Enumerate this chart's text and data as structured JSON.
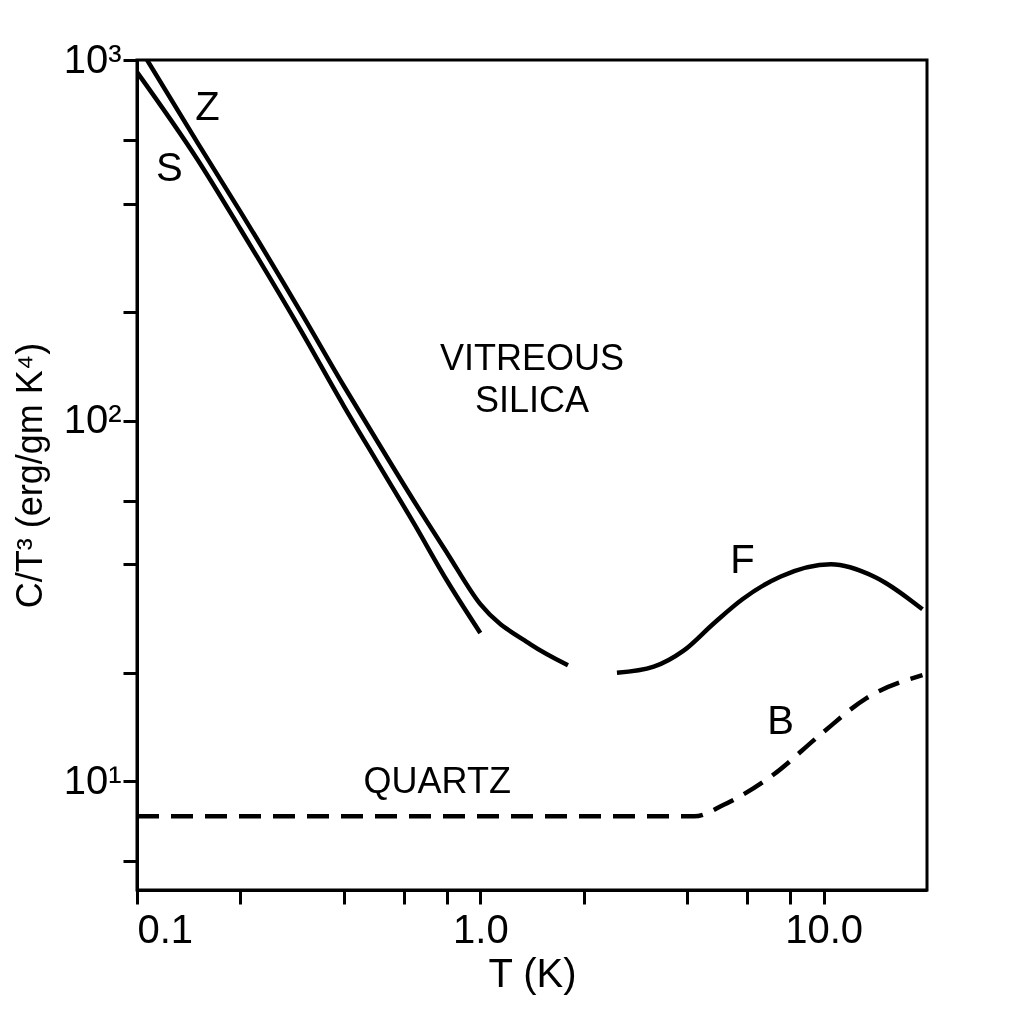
{
  "chart_data": {
    "type": "line",
    "xlabel": "T (K)",
    "ylabel": "C/T³ (erg/gm K⁴)",
    "log": "xy",
    "grid": false,
    "legend": false,
    "marker": "none",
    "xlim": [
      0.1,
      20
    ],
    "ylim": [
      5,
      1000
    ],
    "xticks": [
      0.1,
      {
        "value": 0.2,
        "label": null
      },
      {
        "value": 0.4,
        "label": null
      },
      {
        "value": 0.6,
        "label": null
      },
      {
        "value": 0.8,
        "label": null
      },
      {
        "value": 1,
        "label": "1.0"
      },
      {
        "value": 2,
        "label": null
      },
      {
        "value": 4,
        "label": null
      },
      {
        "value": 6,
        "label": null
      },
      {
        "value": 8,
        "label": null
      },
      {
        "value": 10,
        "label": "10.0"
      }
    ],
    "yticks": [
      {
        "value": 6,
        "label": null
      },
      {
        "value": 10,
        "label": "10¹"
      },
      {
        "value": 20,
        "label": null
      },
      {
        "value": 40,
        "label": null
      },
      {
        "value": 60,
        "label": null
      },
      {
        "value": 100,
        "label": "10²"
      },
      {
        "value": 200,
        "label": null
      },
      {
        "value": 400,
        "label": null
      },
      {
        "value": 600,
        "label": null
      },
      {
        "value": 1000,
        "label": "10³"
      }
    ],
    "series": [
      {
        "name": "Z",
        "color": "#000000",
        "line_style": "solid",
        "x": [
          0.107,
          0.15,
          0.2,
          0.3,
          0.4,
          0.5,
          0.64,
          0.8,
          1.0,
          1.4,
          1.8
        ],
        "values": [
          1000,
          590,
          380,
          200,
          125,
          88,
          60,
          43,
          31,
          24,
          21
        ]
      },
      {
        "name": "S",
        "color": "#000000",
        "line_style": "solid",
        "x": [
          0.1,
          0.15,
          0.2,
          0.3,
          0.4,
          0.5,
          0.64,
          0.8,
          1.0
        ],
        "values": [
          926,
          530,
          340,
          178,
          110,
          77,
          52,
          36,
          25.8
        ]
      },
      {
        "name": "F",
        "color": "#000000",
        "line_style": "solid",
        "x": [
          2.5,
          3.2,
          3.9,
          4.8,
          5.8,
          7.5,
          10.5,
          14,
          19.4
        ],
        "values": [
          20,
          20.8,
          23,
          27.5,
          32,
          37,
          40,
          37,
          30
        ]
      },
      {
        "name": "B",
        "color": "#000000",
        "line_style": "dashed",
        "x": [
          0.1,
          1,
          4.2,
          5.1,
          7.1,
          9.8,
          13.3,
          19.4
        ],
        "values": [
          8,
          8,
          8,
          8.6,
          10.4,
          13.5,
          17,
          19.7
        ]
      }
    ],
    "annotations": [
      "VITREOUS SILICA",
      "QUARTZ"
    ]
  }
}
